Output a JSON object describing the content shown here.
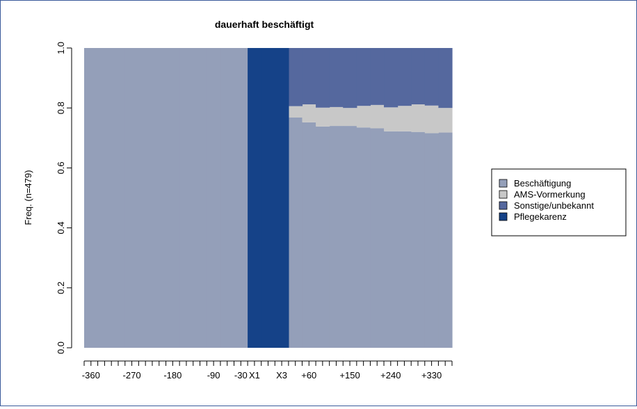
{
  "chart_data": {
    "type": "area",
    "title": "dauerhaft beschäftigt",
    "ylabel": "Freq. (n=479)",
    "xlabel": "",
    "ylim": [
      0,
      1
    ],
    "yticks": [
      "0.0",
      "0.2",
      "0.4",
      "0.6",
      "0.8",
      "1.0"
    ],
    "xtick_labels": [
      "-360",
      "-270",
      "-180",
      "-90",
      "-30",
      "X1",
      "X3",
      "+60",
      "+150",
      "+240",
      "+330"
    ],
    "stack_order": [
      "Beschäftigung",
      "AMS-Vormerkung",
      "Sonstige/unbekannt",
      "Pflegekarenz"
    ],
    "x": [
      -360,
      -330,
      -300,
      -270,
      -240,
      -210,
      -180,
      -150,
      -120,
      -90,
      -60,
      -30,
      "X1",
      "X2",
      "X3",
      30,
      60,
      90,
      120,
      150,
      180,
      210,
      240,
      270,
      300,
      330,
      360
    ],
    "series": [
      {
        "name": "Beschäftigung",
        "color": "#949fb9",
        "values": [
          1,
          1,
          1,
          1,
          1,
          1,
          1,
          1,
          1,
          1,
          1,
          1,
          0,
          0,
          0,
          0.768,
          0.752,
          0.738,
          0.74,
          0.74,
          0.735,
          0.732,
          0.722,
          0.722,
          0.72,
          0.716,
          0.718
        ]
      },
      {
        "name": "AMS-Vormerkung",
        "color": "#c8c8c8",
        "values": [
          0,
          0,
          0,
          0,
          0,
          0,
          0,
          0,
          0,
          0,
          0,
          0,
          0,
          0,
          0,
          0.038,
          0.06,
          0.063,
          0.063,
          0.06,
          0.072,
          0.078,
          0.08,
          0.085,
          0.092,
          0.092,
          0.082
        ]
      },
      {
        "name": "Sonstige/unbekannt",
        "color": "#55689e",
        "values": [
          0,
          0,
          0,
          0,
          0,
          0,
          0,
          0,
          0,
          0,
          0,
          0,
          0,
          0,
          0,
          0.194,
          0.188,
          0.199,
          0.197,
          0.2,
          0.193,
          0.19,
          0.198,
          0.193,
          0.188,
          0.192,
          0.2
        ]
      },
      {
        "name": "Pflegekarenz",
        "color": "#154288",
        "values": [
          0,
          0,
          0,
          0,
          0,
          0,
          0,
          0,
          0,
          0,
          0,
          0,
          1,
          1,
          1,
          0,
          0,
          0,
          0,
          0,
          0,
          0,
          0,
          0,
          0,
          0,
          0
        ]
      }
    ],
    "legend_position": "right"
  }
}
